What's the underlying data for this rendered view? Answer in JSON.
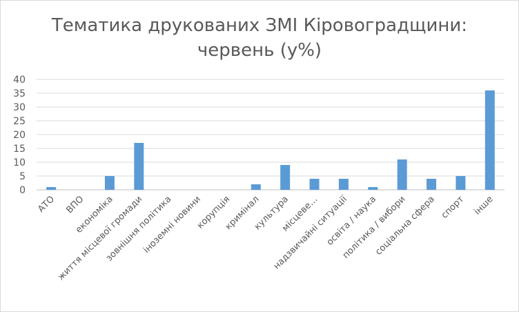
{
  "chart_data": {
    "type": "bar",
    "title_lines": [
      "Тематика друкованих ЗМІ Кіровоградщини:",
      "червень  (у%)"
    ],
    "categories": [
      "АТО",
      "ВПО",
      "економіка",
      "життя місцевої громади",
      "зовнішня політика",
      "іноземні новини",
      "корупція",
      "кримінал",
      "культура",
      "місцеве…",
      "надзвичайні ситуації",
      "освіта / наука",
      "політика / вибори",
      "соціальна сфера",
      "спорт",
      "інше"
    ],
    "values": [
      1,
      0,
      5,
      17,
      0,
      0,
      0,
      2,
      9,
      4,
      4,
      1,
      11,
      4,
      5,
      36
    ],
    "ylim": [
      0,
      40
    ],
    "yticks": [
      0,
      5,
      10,
      15,
      20,
      25,
      30,
      35,
      40
    ],
    "grid": true,
    "legend": "none",
    "bar_color": "#5b9bd5",
    "grid_color": "#d9d9d9",
    "text_color": "#595959"
  }
}
